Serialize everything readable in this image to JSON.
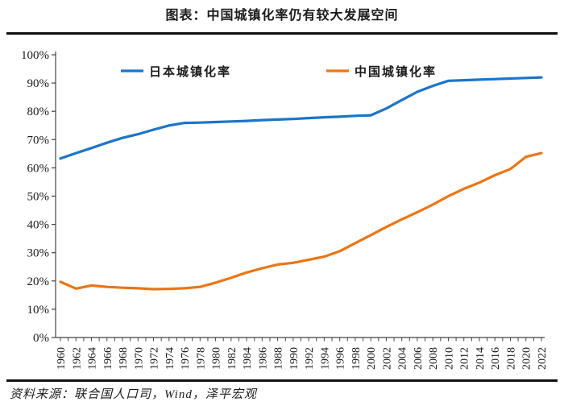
{
  "title": "图表：中国城镇化率仍有较大发展空间",
  "source_note": "资料来源：联合国人口司，Wind，泽平宏观",
  "colors": {
    "japan_line": "#1B75C9",
    "china_line": "#EC7514",
    "axis": "#444444",
    "rule": "#111111",
    "label_text": "#1a1a1a"
  },
  "chart_data": {
    "type": "line",
    "x": [
      1960,
      1962,
      1964,
      1966,
      1968,
      1970,
      1972,
      1974,
      1976,
      1978,
      1980,
      1982,
      1984,
      1986,
      1988,
      1990,
      1992,
      1994,
      1996,
      1998,
      2000,
      2002,
      2004,
      2006,
      2008,
      2010,
      2012,
      2014,
      2016,
      2018,
      2020,
      2022
    ],
    "series": [
      {
        "name": "日本城镇化率",
        "color": "#1B75C9",
        "values": [
          63.3,
          65.2,
          67.0,
          68.9,
          70.6,
          71.9,
          73.5,
          75.0,
          75.9,
          76.0,
          76.2,
          76.4,
          76.6,
          76.9,
          77.1,
          77.3,
          77.6,
          77.9,
          78.1,
          78.4,
          78.6,
          81.0,
          84.0,
          86.9,
          89.0,
          90.8,
          91.0,
          91.2,
          91.4,
          91.6,
          91.8,
          92.0
        ]
      },
      {
        "name": "中国城镇化率",
        "color": "#EC7514",
        "values": [
          19.7,
          17.3,
          18.4,
          17.9,
          17.6,
          17.4,
          17.1,
          17.2,
          17.4,
          17.9,
          19.4,
          21.1,
          23.0,
          24.5,
          25.8,
          26.4,
          27.5,
          28.6,
          30.5,
          33.4,
          36.2,
          39.1,
          41.8,
          44.3,
          47.0,
          50.0,
          52.6,
          54.8,
          57.4,
          59.6,
          63.9,
          65.2
        ]
      }
    ],
    "ylim": [
      0,
      100
    ],
    "ytick_step": 10,
    "ytick_suffix": "%",
    "xtick_label_every": 2,
    "grid": false,
    "legend_position": "top-inside"
  }
}
